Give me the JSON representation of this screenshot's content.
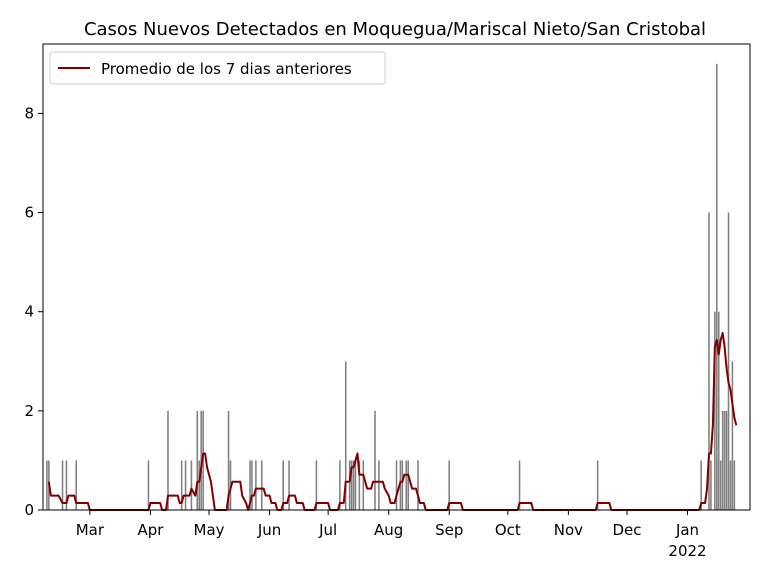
{
  "chart_data": {
    "type": "bar",
    "title": "Casos Nuevos Detectados en Moquegua/Mariscal Nieto/San Cristobal",
    "xlabel": "",
    "ylabel": "",
    "x_range": [
      "2021-02-05",
      "2022-02-02"
    ],
    "ylim": [
      0,
      9.4
    ],
    "y_ticks": [
      0,
      2,
      4,
      6,
      8
    ],
    "x_ticks": [
      {
        "date": "2021-03-01",
        "label": "Mar",
        "sublabel": ""
      },
      {
        "date": "2021-04-01",
        "label": "Apr",
        "sublabel": ""
      },
      {
        "date": "2021-05-01",
        "label": "May",
        "sublabel": ""
      },
      {
        "date": "2021-06-01",
        "label": "Jun",
        "sublabel": ""
      },
      {
        "date": "2021-07-01",
        "label": "Jul",
        "sublabel": ""
      },
      {
        "date": "2021-08-01",
        "label": "Aug",
        "sublabel": ""
      },
      {
        "date": "2021-09-01",
        "label": "Sep",
        "sublabel": ""
      },
      {
        "date": "2021-10-01",
        "label": "Oct",
        "sublabel": ""
      },
      {
        "date": "2021-11-01",
        "label": "Nov",
        "sublabel": ""
      },
      {
        "date": "2021-12-01",
        "label": "Dec",
        "sublabel": ""
      },
      {
        "date": "2022-01-01",
        "label": "Jan",
        "sublabel": "2022"
      }
    ],
    "grid": false,
    "legend": {
      "placement": "upper-left",
      "entries": [
        "Promedio de los 7 dias anteriores"
      ]
    },
    "colors": {
      "bars": "#808080",
      "line": "#800000"
    },
    "series": [
      {
        "name": "",
        "kind": "bar",
        "points": [
          [
            "2021-02-07",
            1
          ],
          [
            "2021-02-08",
            1
          ],
          [
            "2021-02-15",
            1
          ],
          [
            "2021-02-17",
            1
          ],
          [
            "2021-02-22",
            1
          ],
          [
            "2021-03-31",
            1
          ],
          [
            "2021-04-10",
            2
          ],
          [
            "2021-04-17",
            1
          ],
          [
            "2021-04-19",
            1
          ],
          [
            "2021-04-22",
            1
          ],
          [
            "2021-04-25",
            2
          ],
          [
            "2021-04-26",
            1
          ],
          [
            "2021-04-27",
            2
          ],
          [
            "2021-04-28",
            2
          ],
          [
            "2021-05-11",
            2
          ],
          [
            "2021-05-12",
            1
          ],
          [
            "2021-05-22",
            1
          ],
          [
            "2021-05-23",
            1
          ],
          [
            "2021-05-25",
            1
          ],
          [
            "2021-05-28",
            1
          ],
          [
            "2021-06-08",
            1
          ],
          [
            "2021-06-11",
            1
          ],
          [
            "2021-06-25",
            1
          ],
          [
            "2021-07-07",
            1
          ],
          [
            "2021-07-10",
            3
          ],
          [
            "2021-07-12",
            1
          ],
          [
            "2021-07-13",
            1
          ],
          [
            "2021-07-14",
            1
          ],
          [
            "2021-07-15",
            1
          ],
          [
            "2021-07-17",
            1
          ],
          [
            "2021-07-19",
            1
          ],
          [
            "2021-07-25",
            2
          ],
          [
            "2021-07-27",
            1
          ],
          [
            "2021-08-05",
            1
          ],
          [
            "2021-08-07",
            1
          ],
          [
            "2021-08-08",
            1
          ],
          [
            "2021-08-10",
            1
          ],
          [
            "2021-08-11",
            1
          ],
          [
            "2021-08-16",
            1
          ],
          [
            "2021-09-01",
            1
          ],
          [
            "2021-10-07",
            1
          ],
          [
            "2021-11-16",
            1
          ],
          [
            "2022-01-08",
            1
          ],
          [
            "2022-01-12",
            6
          ],
          [
            "2022-01-13",
            1
          ],
          [
            "2022-01-15",
            4
          ],
          [
            "2022-01-16",
            1
          ],
          [
            "2022-01-17",
            4
          ],
          [
            "2022-01-18",
            1
          ],
          [
            "2022-01-19",
            2
          ],
          [
            "2022-01-20",
            2
          ],
          [
            "2022-01-21",
            2
          ],
          [
            "2022-01-22",
            6
          ],
          [
            "2022-01-23",
            1
          ],
          [
            "2022-01-24",
            3
          ],
          [
            "2022-01-25",
            1
          ],
          [
            "2022-01-16",
            1
          ],
          [
            "2022-01-16",
            9
          ]
        ]
      },
      {
        "name": "Promedio de los 7 dias anteriores",
        "kind": "line",
        "points": [
          [
            "2021-02-08",
            0.57
          ],
          [
            "2021-02-09",
            0.29
          ],
          [
            "2021-02-13",
            0.29
          ],
          [
            "2021-02-15",
            0.14
          ],
          [
            "2021-02-17",
            0.14
          ],
          [
            "2021-02-18",
            0.29
          ],
          [
            "2021-02-21",
            0.29
          ],
          [
            "2021-02-22",
            0.14
          ],
          [
            "2021-02-28",
            0.14
          ],
          [
            "2021-03-01",
            0
          ],
          [
            "2021-03-31",
            0
          ],
          [
            "2021-04-01",
            0.14
          ],
          [
            "2021-04-06",
            0.14
          ],
          [
            "2021-04-07",
            0
          ],
          [
            "2021-04-09",
            0
          ],
          [
            "2021-04-10",
            0.29
          ],
          [
            "2021-04-15",
            0.29
          ],
          [
            "2021-04-16",
            0.14
          ],
          [
            "2021-04-17",
            0.14
          ],
          [
            "2021-04-18",
            0.29
          ],
          [
            "2021-04-21",
            0.29
          ],
          [
            "2021-04-22",
            0.43
          ],
          [
            "2021-04-24",
            0.29
          ],
          [
            "2021-04-25",
            0.57
          ],
          [
            "2021-04-26",
            0.57
          ],
          [
            "2021-04-27",
            0.86
          ],
          [
            "2021-04-28",
            1.14
          ],
          [
            "2021-04-29",
            1.14
          ],
          [
            "2021-04-30",
            0.86
          ],
          [
            "2021-05-02",
            0.57
          ],
          [
            "2021-05-04",
            0
          ],
          [
            "2021-05-10",
            0
          ],
          [
            "2021-05-11",
            0.29
          ],
          [
            "2021-05-13",
            0.57
          ],
          [
            "2021-05-17",
            0.57
          ],
          [
            "2021-05-18",
            0.29
          ],
          [
            "2021-05-20",
            0.14
          ],
          [
            "2021-05-21",
            0
          ],
          [
            "2021-05-22",
            0.14
          ],
          [
            "2021-05-23",
            0.29
          ],
          [
            "2021-05-24",
            0.29
          ],
          [
            "2021-05-25",
            0.43
          ],
          [
            "2021-05-29",
            0.43
          ],
          [
            "2021-05-30",
            0.29
          ],
          [
            "2021-06-01",
            0.29
          ],
          [
            "2021-06-02",
            0.14
          ],
          [
            "2021-06-04",
            0.14
          ],
          [
            "2021-06-05",
            0
          ],
          [
            "2021-06-07",
            0
          ],
          [
            "2021-06-08",
            0.14
          ],
          [
            "2021-06-10",
            0.14
          ],
          [
            "2021-06-11",
            0.29
          ],
          [
            "2021-06-14",
            0.29
          ],
          [
            "2021-06-15",
            0.14
          ],
          [
            "2021-06-18",
            0.14
          ],
          [
            "2021-06-19",
            0
          ],
          [
            "2021-06-24",
            0
          ],
          [
            "2021-06-25",
            0.14
          ],
          [
            "2021-07-01",
            0.14
          ],
          [
            "2021-07-02",
            0
          ],
          [
            "2021-07-06",
            0
          ],
          [
            "2021-07-07",
            0.14
          ],
          [
            "2021-07-09",
            0.14
          ],
          [
            "2021-07-10",
            0.57
          ],
          [
            "2021-07-12",
            0.57
          ],
          [
            "2021-07-13",
            0.86
          ],
          [
            "2021-07-14",
            0.86
          ],
          [
            "2021-07-15",
            1.0
          ],
          [
            "2021-07-16",
            1.14
          ],
          [
            "2021-07-17",
            0.71
          ],
          [
            "2021-07-19",
            0.71
          ],
          [
            "2021-07-21",
            0.43
          ],
          [
            "2021-07-23",
            0.43
          ],
          [
            "2021-07-24",
            0.57
          ],
          [
            "2021-07-29",
            0.57
          ],
          [
            "2021-07-30",
            0.43
          ],
          [
            "2021-08-01",
            0.29
          ],
          [
            "2021-08-02",
            0.14
          ],
          [
            "2021-08-04",
            0.14
          ],
          [
            "2021-08-05",
            0.29
          ],
          [
            "2021-08-06",
            0.43
          ],
          [
            "2021-08-07",
            0.57
          ],
          [
            "2021-08-08",
            0.57
          ],
          [
            "2021-08-09",
            0.71
          ],
          [
            "2021-08-11",
            0.71
          ],
          [
            "2021-08-12",
            0.57
          ],
          [
            "2021-08-13",
            0.43
          ],
          [
            "2021-08-15",
            0.43
          ],
          [
            "2021-08-16",
            0.29
          ],
          [
            "2021-08-17",
            0.14
          ],
          [
            "2021-08-19",
            0.14
          ],
          [
            "2021-08-20",
            0
          ],
          [
            "2021-08-31",
            0
          ],
          [
            "2021-09-01",
            0.14
          ],
          [
            "2021-09-07",
            0.14
          ],
          [
            "2021-09-08",
            0
          ],
          [
            "2021-10-06",
            0
          ],
          [
            "2021-10-07",
            0.14
          ],
          [
            "2021-10-13",
            0.14
          ],
          [
            "2021-10-14",
            0
          ],
          [
            "2021-11-15",
            0
          ],
          [
            "2021-11-16",
            0.14
          ],
          [
            "2021-11-22",
            0.14
          ],
          [
            "2021-11-23",
            0
          ],
          [
            "2022-01-07",
            0
          ],
          [
            "2022-01-08",
            0.14
          ],
          [
            "2022-01-10",
            0.14
          ],
          [
            "2022-01-11",
            0.43
          ],
          [
            "2022-01-12",
            1.14
          ],
          [
            "2022-01-13",
            1.14
          ],
          [
            "2022-01-14",
            1.71
          ],
          [
            "2022-01-15",
            3.29
          ],
          [
            "2022-01-16",
            3.43
          ],
          [
            "2022-01-17",
            3.14
          ],
          [
            "2022-01-18",
            3.43
          ],
          [
            "2022-01-19",
            3.57
          ],
          [
            "2022-01-20",
            3.29
          ],
          [
            "2022-01-21",
            2.86
          ],
          [
            "2022-01-22",
            2.57
          ],
          [
            "2022-01-23",
            2.43
          ],
          [
            "2022-01-24",
            2.14
          ],
          [
            "2022-01-25",
            1.86
          ],
          [
            "2022-01-26",
            1.71
          ]
        ]
      }
    ]
  }
}
